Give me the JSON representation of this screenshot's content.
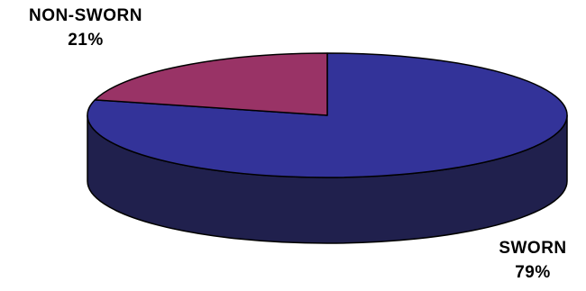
{
  "chart_data": {
    "type": "pie",
    "style": "3d",
    "slices": [
      {
        "name": "SWORN",
        "value": 79,
        "label": "79%",
        "color": "#333399",
        "side_color": "#20204d"
      },
      {
        "name": "NON-SWORN",
        "value": 21,
        "label": "21%",
        "color": "#993366",
        "side_color": "#4d1a33"
      }
    ],
    "legend": "none"
  }
}
